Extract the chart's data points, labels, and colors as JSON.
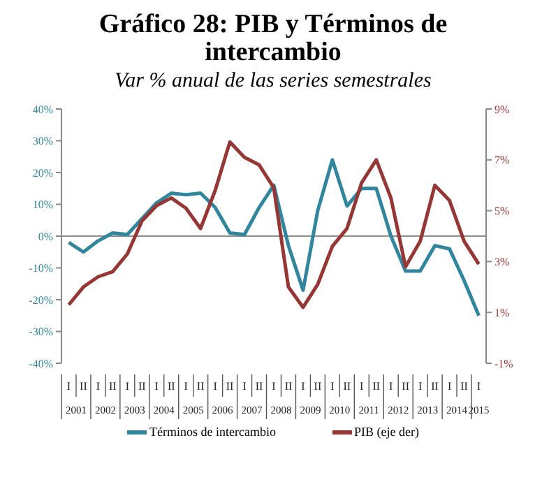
{
  "chart_data": {
    "type": "line",
    "title": "Gráfico 28: PIB y Términos de intercambio",
    "subtitle": "Var % anual de las series semestrales",
    "categories": [
      "I",
      "II",
      "I",
      "II",
      "I",
      "II",
      "I",
      "II",
      "I",
      "II",
      "I",
      "II",
      "I",
      "II",
      "I",
      "II",
      "I",
      "II",
      "I",
      "II",
      "I",
      "II",
      "I",
      "II",
      "I",
      "II",
      "I",
      "II",
      "I"
    ],
    "annotations": [
      "2001",
      "2002",
      "2003",
      "2004",
      "2005",
      "2006",
      "2007",
      "2008",
      "2009",
      "2010",
      "2011",
      "2012",
      "2013",
      "2014",
      "2015"
    ],
    "series": [
      {
        "name": "Términos de intercambio",
        "color": "#31859c",
        "values": [
          -2,
          -5,
          -1.5,
          1,
          0.5,
          5.5,
          10.5,
          13.5,
          13,
          13.5,
          9,
          1,
          0.5,
          9,
          16,
          -3,
          -17,
          8,
          24,
          9.5,
          15,
          15,
          0,
          -11,
          -11,
          -3,
          -4,
          -14,
          -25
        ]
      },
      {
        "name": "PIB (eje der)",
        "color": "#953735",
        "axis": "y2",
        "values": [
          1.3,
          2,
          2.4,
          2.6,
          3.3,
          4.6,
          5.2,
          5.5,
          5.1,
          4.3,
          5.8,
          7.7,
          7.1,
          6.8,
          5.9,
          2,
          1.2,
          2.1,
          3.6,
          4.3,
          6.1,
          7,
          5.5,
          2.8,
          3.8,
          6,
          5.4,
          3.8,
          2.9
        ]
      }
    ],
    "ylim": [
      -40,
      40
    ],
    "yticks": [
      {
        "value": -40,
        "label": "-40%"
      },
      {
        "value": -30,
        "label": "-30%"
      },
      {
        "value": -20,
        "label": "-20%"
      },
      {
        "value": -10,
        "label": "-10%"
      },
      {
        "value": 0,
        "label": "0%"
      },
      {
        "value": 10,
        "label": "10%"
      },
      {
        "value": 20,
        "label": "20%"
      },
      {
        "value": 30,
        "label": "30%"
      },
      {
        "value": 40,
        "label": "40%"
      }
    ],
    "y2lim": [
      -1,
      9
    ],
    "y2ticks": [
      {
        "value": -1,
        "label": "-1%"
      },
      {
        "value": 1,
        "label": "1%"
      },
      {
        "value": 3,
        "label": "3%"
      },
      {
        "value": 5,
        "label": "5%"
      },
      {
        "value": 7,
        "label": "7%"
      },
      {
        "value": 9,
        "label": "9%"
      }
    ],
    "ref_lines": [
      {
        "axis": "y",
        "value": 0,
        "color": "#666666"
      }
    ],
    "grid": false,
    "legend": "bottom",
    "marker": "none",
    "line_style": "solid"
  }
}
